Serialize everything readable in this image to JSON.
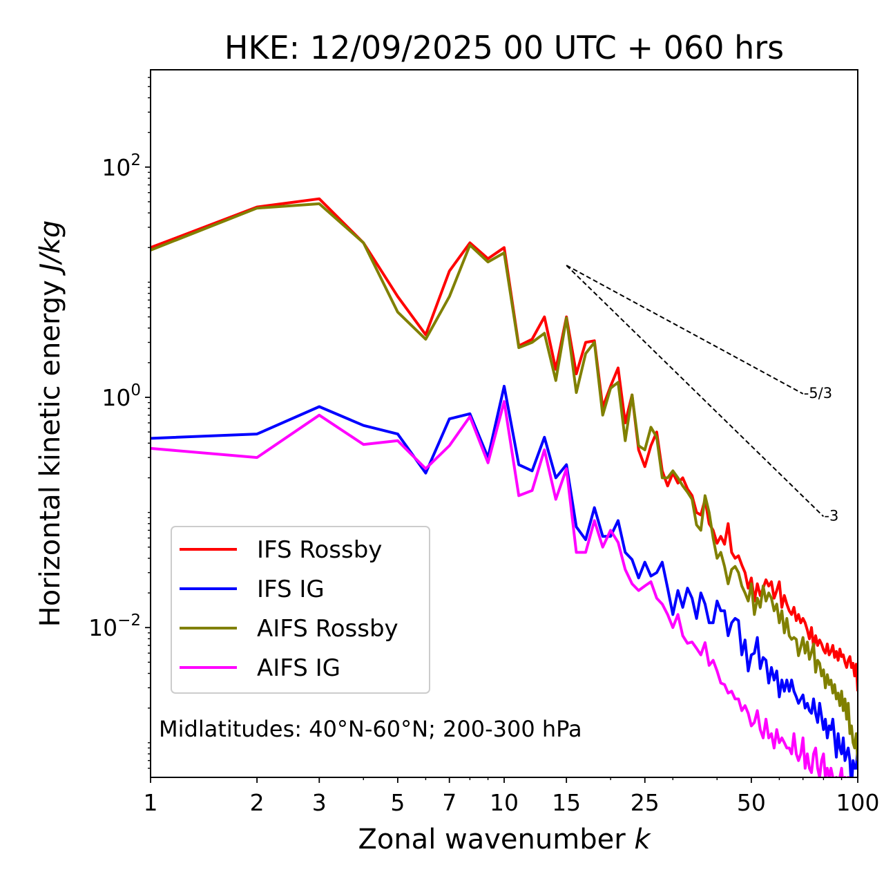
{
  "chart_data": {
    "type": "line",
    "title": "HKE: 12/09/2025 00 UTC + 060 hrs",
    "xlabel_main": "Zonal wavenumber ",
    "xlabel_var": "k",
    "ylabel_main": "Horizontal kinetic energy ",
    "ylabel_unit": "J/kg",
    "xscale": "log",
    "yscale": "log",
    "xlim": [
      1,
      100
    ],
    "ylim": [
      0.0005,
      700
    ],
    "x_ticks": [
      1,
      2,
      3,
      5,
      7,
      10,
      15,
      25,
      50,
      100
    ],
    "x_tick_labels": [
      "1",
      "2",
      "3",
      "5",
      "7",
      "10",
      "15",
      "25",
      "50",
      "100"
    ],
    "y_ticks": [
      {
        "value": 100,
        "base": "10",
        "exp": "2"
      },
      {
        "value": 1,
        "base": "10",
        "exp": "0"
      },
      {
        "value": 0.01,
        "base": "10",
        "exp": "−2"
      }
    ],
    "annotation": "Midlatitudes: 40°N-60°N; 200-300 hPa",
    "legend_position": "lower-left",
    "reference_lines": [
      {
        "label": "-5/3",
        "slope": -1.6667,
        "x": [
          15,
          70
        ],
        "y0": 14
      },
      {
        "label": "-3",
        "slope": -3,
        "x": [
          15,
          80
        ],
        "y0": 14
      }
    ],
    "series": [
      {
        "name": "IFS Rossby",
        "color": "#ff0000",
        "x": [
          1,
          2,
          3,
          4,
          5,
          6,
          7,
          8,
          9,
          10,
          11,
          12,
          13,
          14,
          15,
          16,
          17,
          18,
          19,
          20,
          21,
          22,
          23,
          24,
          25,
          26,
          27,
          28,
          29,
          30,
          31,
          32,
          33,
          34,
          35,
          36,
          37,
          38,
          39,
          40,
          41,
          42,
          43,
          44,
          45,
          46,
          47,
          48,
          49,
          50,
          51,
          52,
          53,
          54,
          55,
          56,
          57,
          58,
          59,
          60,
          61,
          62,
          63,
          64,
          65,
          66,
          67,
          68,
          69,
          70,
          71,
          72,
          73,
          74,
          75,
          76,
          77,
          78,
          79,
          80,
          81,
          82,
          83,
          84,
          85,
          86,
          87,
          88,
          89,
          90,
          91,
          92,
          93,
          94,
          95,
          96,
          97,
          98,
          99,
          100
        ],
        "y": [
          20,
          45,
          53,
          22,
          7.5,
          3.5,
          12.5,
          22,
          16,
          20,
          2.8,
          3.2,
          5,
          1.75,
          5,
          1.6,
          3,
          3.1,
          0.82,
          1.25,
          1.8,
          0.6,
          1.05,
          0.35,
          0.25,
          0.38,
          0.5,
          0.23,
          0.17,
          0.22,
          0.18,
          0.2,
          0.16,
          0.14,
          0.1,
          0.095,
          0.13,
          0.08,
          0.07,
          0.054,
          0.062,
          0.053,
          0.08,
          0.045,
          0.04,
          0.042,
          0.035,
          0.03,
          0.022,
          0.027,
          0.017,
          0.024,
          0.019,
          0.022,
          0.026,
          0.023,
          0.025,
          0.018,
          0.021,
          0.025,
          0.015,
          0.019,
          0.016,
          0.014,
          0.013,
          0.015,
          0.0115,
          0.013,
          0.011,
          0.012,
          0.011,
          0.0095,
          0.008,
          0.01,
          0.0068,
          0.0085,
          0.007,
          0.0078,
          0.0072,
          0.0064,
          0.006,
          0.0072,
          0.0058,
          0.0062,
          0.007,
          0.0055,
          0.0062,
          0.0052,
          0.0065,
          0.0056,
          0.0058,
          0.005,
          0.0045,
          0.0052,
          0.0056,
          0.0045,
          0.0049,
          0.0038,
          0.0048,
          0.0028
        ]
      },
      {
        "name": "IFS IG",
        "color": "#0000ff",
        "x": [
          1,
          2,
          3,
          4,
          5,
          6,
          7,
          8,
          9,
          10,
          11,
          12,
          13,
          14,
          15,
          16,
          17,
          18,
          19,
          20,
          21,
          22,
          23,
          24,
          25,
          26,
          27,
          28,
          29,
          30,
          31,
          32,
          33,
          34,
          35,
          36,
          37,
          38,
          39,
          40,
          41,
          42,
          43,
          44,
          45,
          46,
          47,
          48,
          49,
          50,
          51,
          52,
          53,
          54,
          55,
          56,
          57,
          58,
          59,
          60,
          61,
          62,
          63,
          64,
          65,
          66,
          67,
          68,
          69,
          70,
          71,
          72,
          73,
          74,
          75,
          76,
          77,
          78,
          79,
          80,
          81,
          82,
          83,
          84,
          85,
          86,
          87,
          88,
          89,
          90,
          91,
          92,
          93,
          94,
          95,
          96,
          97,
          98,
          99,
          100
        ],
        "y": [
          0.44,
          0.48,
          0.83,
          0.57,
          0.48,
          0.22,
          0.65,
          0.72,
          0.3,
          1.25,
          0.26,
          0.23,
          0.45,
          0.2,
          0.26,
          0.075,
          0.058,
          0.11,
          0.062,
          0.062,
          0.085,
          0.045,
          0.039,
          0.027,
          0.037,
          0.028,
          0.03,
          0.037,
          0.022,
          0.013,
          0.021,
          0.015,
          0.022,
          0.018,
          0.012,
          0.02,
          0.016,
          0.011,
          0.011,
          0.017,
          0.014,
          0.014,
          0.0085,
          0.011,
          0.012,
          0.0115,
          0.0058,
          0.0078,
          0.0042,
          0.0058,
          0.006,
          0.0082,
          0.0044,
          0.0055,
          0.0052,
          0.0033,
          0.0045,
          0.0035,
          0.0042,
          0.0025,
          0.0035,
          0.0028,
          0.0035,
          0.0028,
          0.0035,
          0.0028,
          0.0025,
          0.0022,
          0.0024,
          0.0026,
          0.002,
          0.0022,
          0.0019,
          0.0018,
          0.0024,
          0.0018,
          0.0015,
          0.0022,
          0.0017,
          0.0013,
          0.0016,
          0.0011,
          0.0014,
          0.0013,
          0.0016,
          0.0011,
          0.00075,
          0.0012,
          0.0009,
          0.0008,
          0.0011,
          0.0007,
          0.0008,
          0.0009,
          0.0007,
          0.0004,
          0.0007,
          0.0006,
          0.0006,
          0.0009
        ]
      },
      {
        "name": "AIFS Rossby",
        "color": "#808000",
        "x": [
          1,
          2,
          3,
          4,
          5,
          6,
          7,
          8,
          9,
          10,
          11,
          12,
          13,
          14,
          15,
          16,
          17,
          18,
          19,
          20,
          21,
          22,
          23,
          24,
          25,
          26,
          27,
          28,
          29,
          30,
          31,
          32,
          33,
          34,
          35,
          36,
          37,
          38,
          39,
          40,
          41,
          42,
          43,
          44,
          45,
          46,
          47,
          48,
          49,
          50,
          51,
          52,
          53,
          54,
          55,
          56,
          57,
          58,
          59,
          60,
          61,
          62,
          63,
          64,
          65,
          66,
          67,
          68,
          69,
          70,
          71,
          72,
          73,
          74,
          75,
          76,
          77,
          78,
          79,
          80,
          81,
          82,
          83,
          84,
          85,
          86,
          87,
          88,
          89,
          90,
          91,
          92,
          93,
          94,
          95,
          96,
          97,
          98,
          99,
          100
        ],
        "y": [
          19,
          44,
          48,
          22,
          5.5,
          3.2,
          7.5,
          21,
          15,
          18,
          2.7,
          3,
          3.6,
          1.4,
          4.9,
          1.1,
          2.4,
          3,
          0.7,
          1.2,
          1.35,
          0.42,
          1.05,
          0.38,
          0.35,
          0.55,
          0.45,
          0.2,
          0.2,
          0.23,
          0.2,
          0.17,
          0.15,
          0.13,
          0.078,
          0.07,
          0.14,
          0.1,
          0.06,
          0.04,
          0.045,
          0.034,
          0.024,
          0.032,
          0.034,
          0.03,
          0.023,
          0.02,
          0.017,
          0.024,
          0.013,
          0.018,
          0.015,
          0.023,
          0.017,
          0.02,
          0.018,
          0.014,
          0.016,
          0.011,
          0.014,
          0.009,
          0.012,
          0.0085,
          0.0079,
          0.0082,
          0.0079,
          0.0057,
          0.0068,
          0.0082,
          0.006,
          0.0075,
          0.0053,
          0.0061,
          0.0072,
          0.0041,
          0.0052,
          0.0049,
          0.0038,
          0.0043,
          0.003,
          0.0039,
          0.0032,
          0.0035,
          0.0027,
          0.0032,
          0.0024,
          0.0027,
          0.0021,
          0.0028,
          0.0019,
          0.0024,
          0.0016,
          0.0022,
          0.0012,
          0.0014,
          0.001,
          0.0009,
          0.0012,
          0.0007
        ]
      },
      {
        "name": "AIFS IG",
        "color": "#ff00ff",
        "x": [
          1,
          2,
          3,
          4,
          5,
          6,
          7,
          8,
          9,
          10,
          11,
          12,
          13,
          14,
          15,
          16,
          17,
          18,
          19,
          20,
          21,
          22,
          23,
          24,
          25,
          26,
          27,
          28,
          29,
          30,
          31,
          32,
          33,
          34,
          35,
          36,
          37,
          38,
          39,
          40,
          41,
          42,
          43,
          44,
          45,
          46,
          47,
          48,
          49,
          50,
          51,
          52,
          53,
          54,
          55,
          56,
          57,
          58,
          59,
          60,
          61,
          62,
          63,
          64,
          65,
          66,
          67,
          68,
          69,
          70,
          71,
          72,
          73,
          74,
          75,
          76,
          77,
          78,
          79,
          80,
          81,
          82,
          83,
          84,
          85,
          86,
          87,
          88,
          89,
          90,
          91,
          92,
          93,
          94,
          95,
          96,
          97,
          98,
          99,
          100
        ],
        "y": [
          0.36,
          0.3,
          0.7,
          0.39,
          0.42,
          0.24,
          0.38,
          0.68,
          0.27,
          0.92,
          0.14,
          0.155,
          0.35,
          0.13,
          0.24,
          0.045,
          0.045,
          0.085,
          0.05,
          0.07,
          0.055,
          0.032,
          0.024,
          0.021,
          0.023,
          0.025,
          0.018,
          0.016,
          0.013,
          0.01,
          0.013,
          0.0085,
          0.0073,
          0.0075,
          0.0066,
          0.0058,
          0.0074,
          0.0047,
          0.0052,
          0.0042,
          0.0033,
          0.0032,
          0.0027,
          0.0028,
          0.0024,
          0.0024,
          0.0019,
          0.0021,
          0.0018,
          0.0014,
          0.0015,
          0.0019,
          0.0013,
          0.0011,
          0.0016,
          0.0011,
          0.0012,
          0.0009,
          0.0013,
          0.001,
          0.0011,
          0.001,
          0.0009,
          0.0009,
          0.0008,
          0.0012,
          0.0008,
          0.0007,
          0.0008,
          0.0011,
          0.0006,
          0.0008,
          0.0006,
          0.00055,
          0.0008,
          0.0009,
          0.0006,
          0.0005,
          0.0007,
          0.0008,
          0.0005,
          0.0006,
          0.0005,
          0.0006,
          0.0005,
          0.0004,
          0.0005,
          0.0004,
          0.0005,
          0.0006,
          0.0004,
          0.0005,
          0.0004,
          0.0005,
          0.0003,
          0.0004,
          0.0003,
          0.0004,
          0.0003,
          0.0004
        ]
      }
    ]
  }
}
